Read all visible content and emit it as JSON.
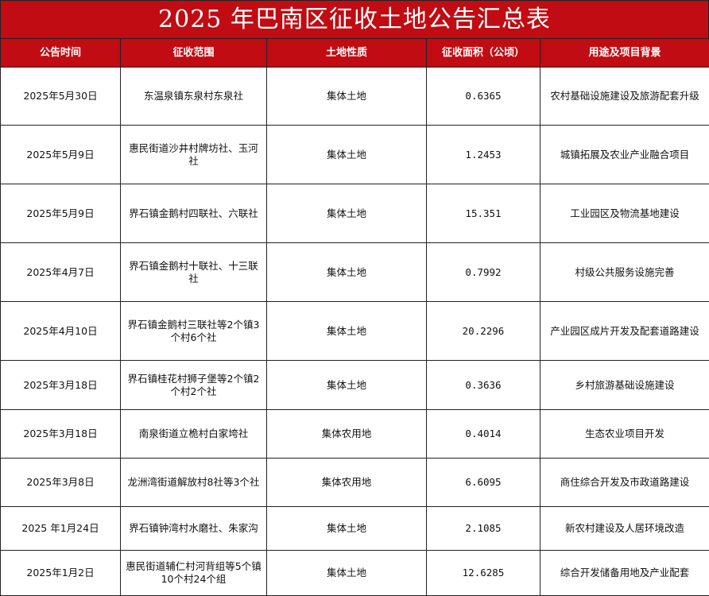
{
  "title": "2025 年巴南区征收土地公告汇总表",
  "colors": {
    "header_bg": "#c00c12",
    "header_text": "#ffffff"
  },
  "columns": [
    "公告时间",
    "征收范围",
    "土地性质",
    "征收面积（公顷）",
    "用途及项目背景"
  ],
  "rows": [
    {
      "date": "2025年5月30日",
      "scope": "东温泉镇东泉村东泉社",
      "nature": "集体土地",
      "area": "0.6365",
      "purpose": "农村基础设施建设及旅游配套升级"
    },
    {
      "date": "2025年5月9日",
      "scope": "惠民街道沙井村牌坊社、玉河社",
      "nature": "集体土地",
      "area": "1.2453",
      "purpose": "城镇拓展及农业产业融合项目"
    },
    {
      "date": "2025年5月9日",
      "scope": "界石镇金鹅村四联社、六联社",
      "nature": "集体土地",
      "area": "15.351",
      "purpose": "工业园区及物流基地建设"
    },
    {
      "date": "2025年4月7日",
      "scope": "界石镇金鹅村十联社、十三联社",
      "nature": "集体土地",
      "area": "0.7992",
      "purpose": "村级公共服务设施完善"
    },
    {
      "date": "2025年4月10日",
      "scope": "界石镇金鹅村三联社等2个镇3个村6个社",
      "nature": "集体土地",
      "area": "20.2296",
      "purpose": "产业园区成片开发及配套道路建设"
    },
    {
      "date": "2025年3月18日",
      "scope": "界石镇桂花村狮子堡等2个镇2个村2个社",
      "nature": "集体土地",
      "area": "0.3636",
      "purpose": "乡村旅游基础设施建设"
    },
    {
      "date": "2025年3月18日",
      "scope": "南泉街道立桅村白家垮社",
      "nature": "集体农用地",
      "area": "0.4014",
      "purpose": "生态农业项目开发"
    },
    {
      "date": "2025年3月8日",
      "scope": "龙洲湾街道解放村8社等3个社",
      "nature": "集体农用地",
      "area": "6.6095",
      "purpose": "商住综合开发及市政道路建设"
    },
    {
      "date": "2025 年1月24日",
      "scope": "界石镇钟湾村水磨社、朱家沟",
      "nature": "集体土地",
      "area": "2.1085",
      "purpose": "新农村建设及人居环境改造"
    },
    {
      "date": "2025年1月2日",
      "scope": "惠民街道辅仁村河背组等5个镇10个村24个组",
      "nature": "集体土地",
      "area": "12.6285",
      "purpose": "综合开发储备用地及产业配套"
    }
  ]
}
